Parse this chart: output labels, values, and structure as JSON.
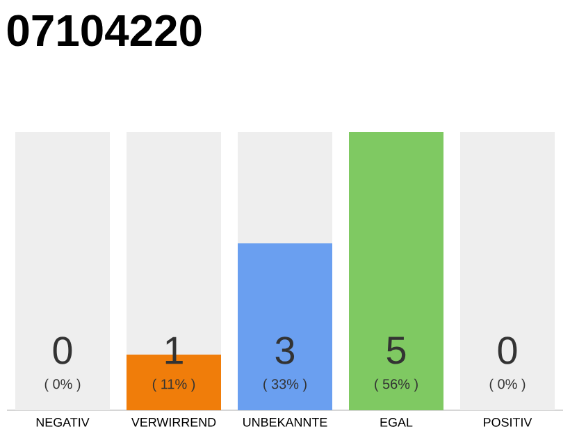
{
  "chart_data": {
    "type": "bar",
    "title": "07104220",
    "categories": [
      "NEGATIV",
      "VERWIRREND",
      "UNBEKANNTE",
      "EGAL",
      "POSITIV"
    ],
    "stacked": true,
    "series": [
      {
        "values": [
          0,
          1,
          3,
          5,
          0
        ],
        "colors": [
          "#eeeeee",
          "#f07d0a",
          "#6a9ff0",
          "#7fc962",
          "#eeeeee"
        ],
        "value_labels": [
          null,
          "1",
          "3",
          "5",
          null
        ]
      },
      {
        "values": [
          5,
          4,
          2,
          0,
          5
        ],
        "color": "#eeeeee"
      }
    ],
    "annotations": [
      "( 0% )",
      "( 11% )",
      "( 33% )",
      "( 56% )",
      "( 0% )",
      {
        "text": "0",
        "x": "NEGATIV",
        "y": 0
      },
      {
        "text": "0",
        "x": "POSITIV",
        "y": 0
      }
    ],
    "tick_labels": "x"
  }
}
